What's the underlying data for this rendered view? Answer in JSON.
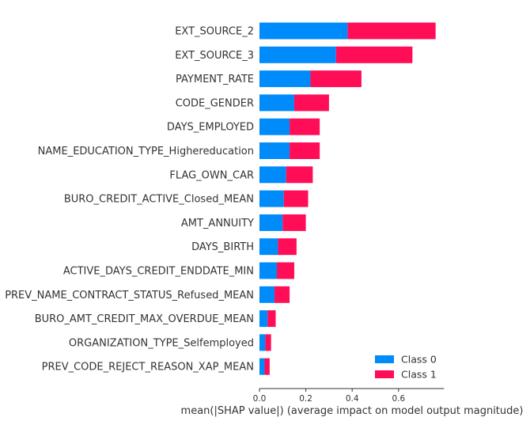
{
  "chart_data": {
    "type": "bar",
    "stacked": true,
    "orientation": "horizontal",
    "xlabel": "mean(|SHAP value|) (average impact on model output magnitude)",
    "xlim": [
      0,
      0.8
    ],
    "xticks": [
      "0.0",
      "0.2",
      "0.4",
      "0.6"
    ],
    "categories": [
      "EXT_SOURCE_2",
      "EXT_SOURCE_3",
      "PAYMENT_RATE",
      "CODE_GENDER",
      "DAYS_EMPLOYED",
      "NAME_EDUCATION_TYPE_Highereducation",
      "FLAG_OWN_CAR",
      "BURO_CREDIT_ACTIVE_Closed_MEAN",
      "AMT_ANNUITY",
      "DAYS_BIRTH",
      "ACTIVE_DAYS_CREDIT_ENDDATE_MIN",
      "PREV_NAME_CONTRACT_STATUS_Refused_MEAN",
      "BURO_AMT_CREDIT_MAX_OVERDUE_MEAN",
      "ORGANIZATION_TYPE_Selfemployed",
      "PREV_CODE_REJECT_REASON_XAP_MEAN"
    ],
    "series": [
      {
        "name": "Class 0",
        "color": "#008bfb",
        "values": [
          0.38,
          0.33,
          0.22,
          0.15,
          0.13,
          0.13,
          0.115,
          0.105,
          0.1,
          0.08,
          0.075,
          0.065,
          0.035,
          0.025,
          0.022
        ]
      },
      {
        "name": "Class 1",
        "color": "#ff0d57",
        "values": [
          0.38,
          0.33,
          0.22,
          0.15,
          0.13,
          0.13,
          0.115,
          0.105,
          0.1,
          0.08,
          0.075,
          0.065,
          0.035,
          0.025,
          0.022
        ]
      }
    ],
    "grid": false,
    "legend_position": "bottom-right"
  }
}
